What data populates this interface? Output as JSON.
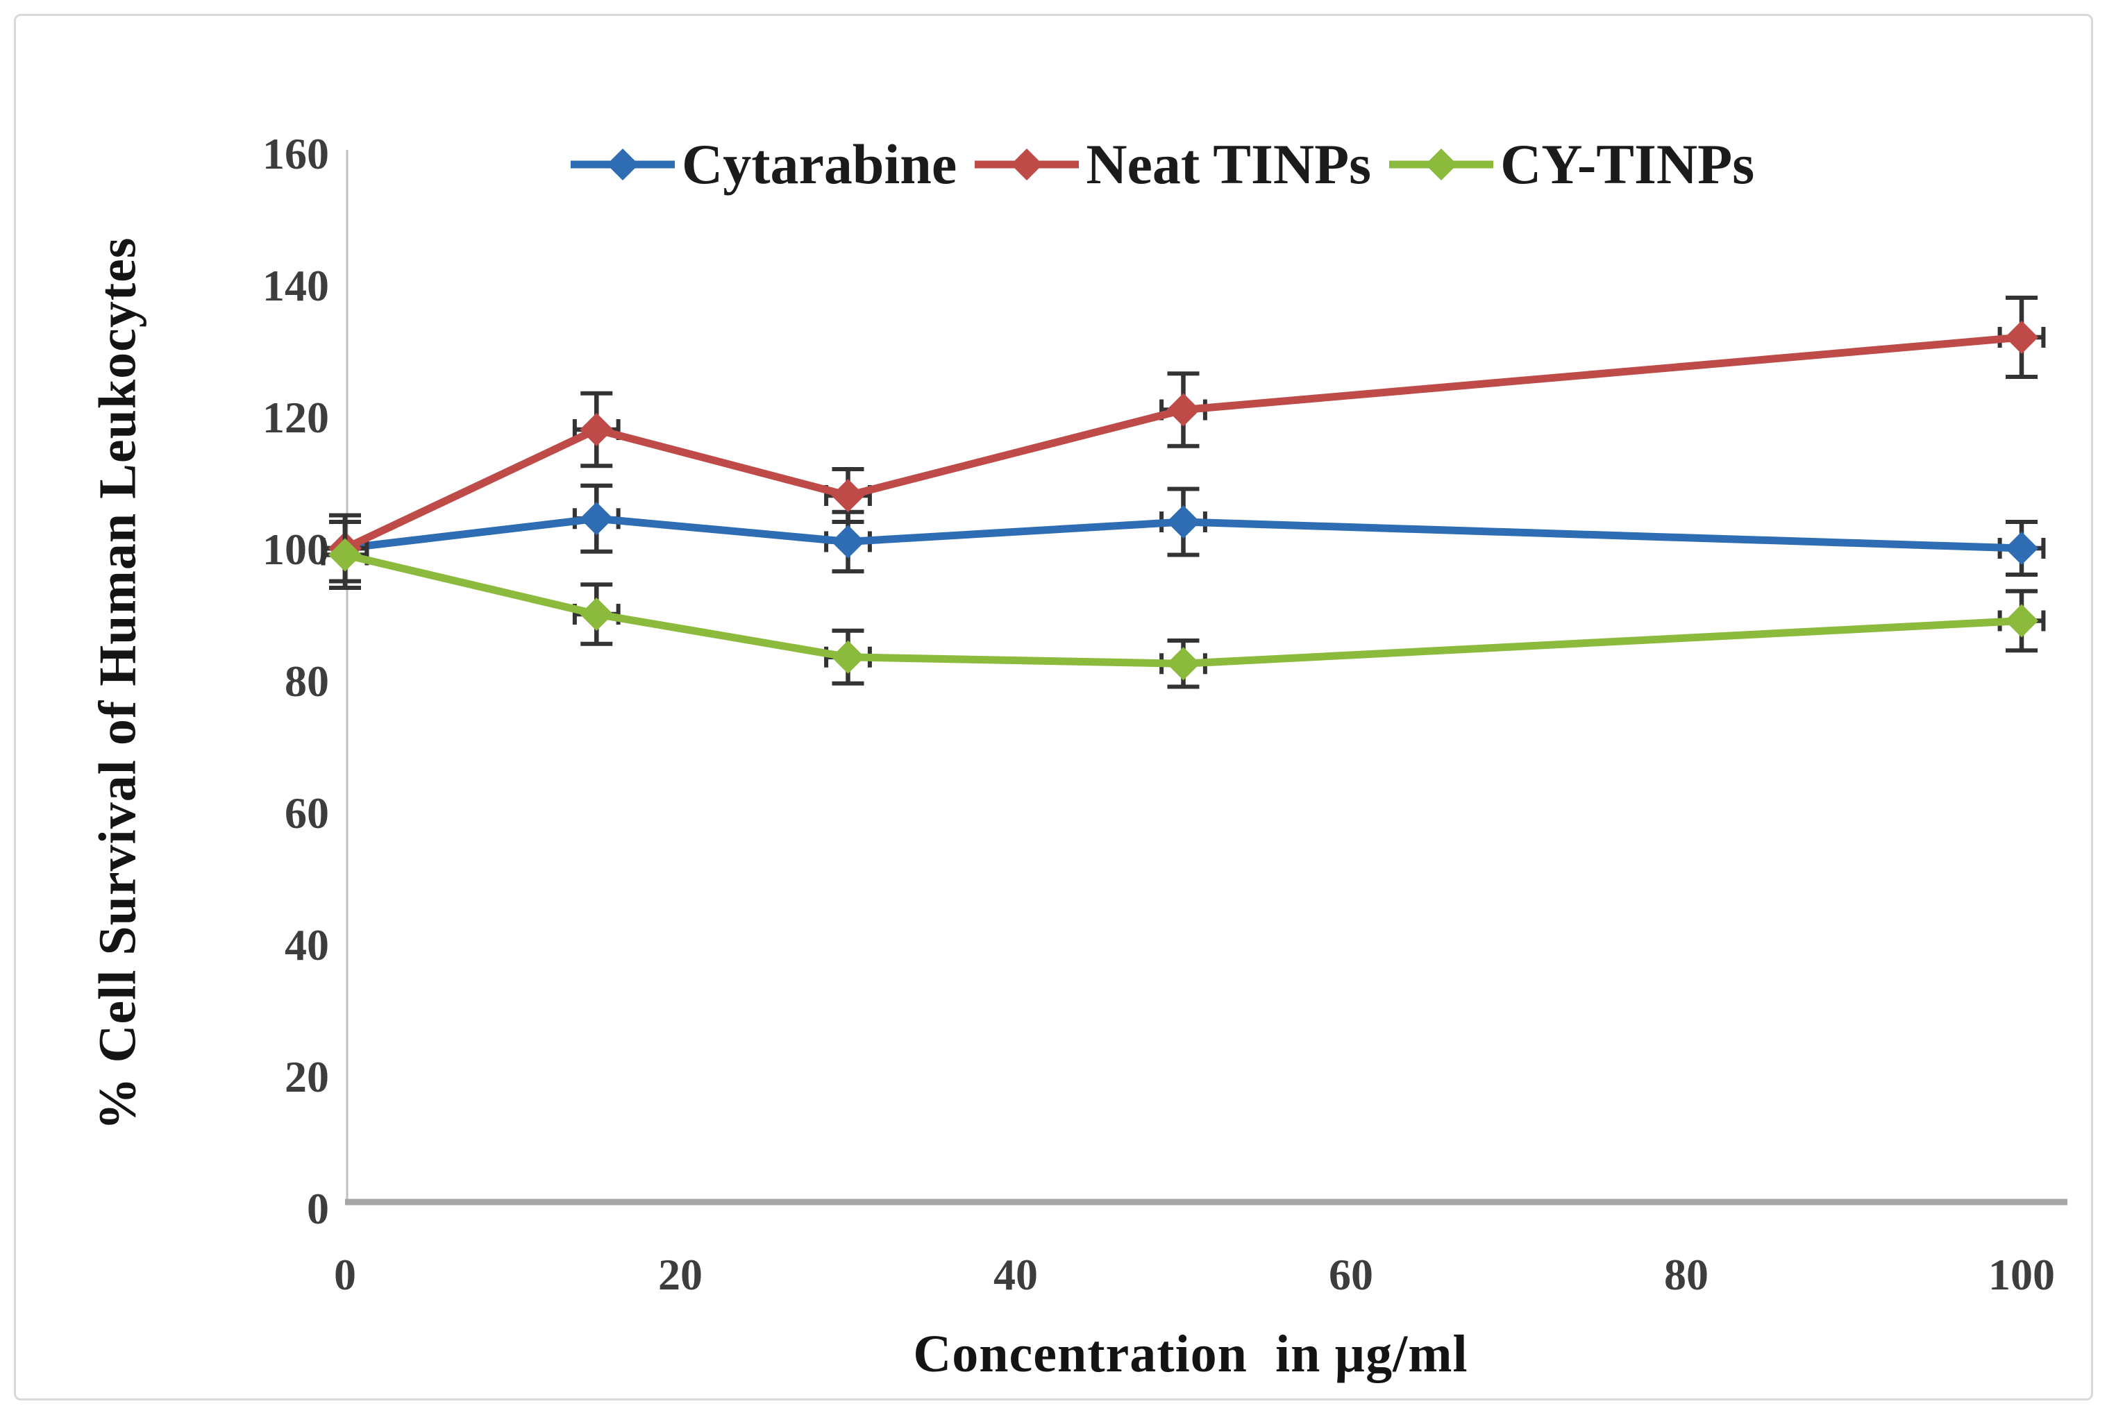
{
  "chart_data": {
    "type": "line",
    "x": [
      0,
      15,
      30,
      50,
      100
    ],
    "series": [
      {
        "name": "Cytarabine",
        "color": "#2E6DB4",
        "values": [
          100,
          104.5,
          101,
          104,
          100
        ],
        "yerr": [
          5,
          5,
          4.5,
          5,
          4
        ]
      },
      {
        "name": "Neat TINPs",
        "color": "#BE4B48",
        "values": [
          100,
          118,
          108,
          121,
          132
        ],
        "yerr": [
          5,
          5.5,
          4,
          5.5,
          6
        ]
      },
      {
        "name": "CY-TINPs",
        "color": "#8CBA3C",
        "values": [
          99,
          90,
          83.5,
          82.5,
          89
        ],
        "yerr": [
          5,
          4.5,
          4,
          3.5,
          4.5
        ]
      }
    ],
    "xerr": 1.3,
    "xlabel": "Concentration  in µg/ml",
    "ylabel": "% Cell Survival of Human Leukocytes",
    "xticks": [
      0,
      20,
      40,
      60,
      80,
      100
    ],
    "yticks": [
      0,
      20,
      40,
      60,
      80,
      100,
      120,
      140,
      160
    ],
    "xlim": [
      0,
      105
    ],
    "ylim": [
      0,
      160
    ],
    "grid": false,
    "marker": "diamond",
    "legend_position": "top-center",
    "axis_color": "#A6A6A6",
    "y_axis_line_color": "#BFBFBF",
    "tick_color": "#3D3D3D",
    "errorbar_color": "#333333",
    "frame_color": "#D9D9D9"
  }
}
